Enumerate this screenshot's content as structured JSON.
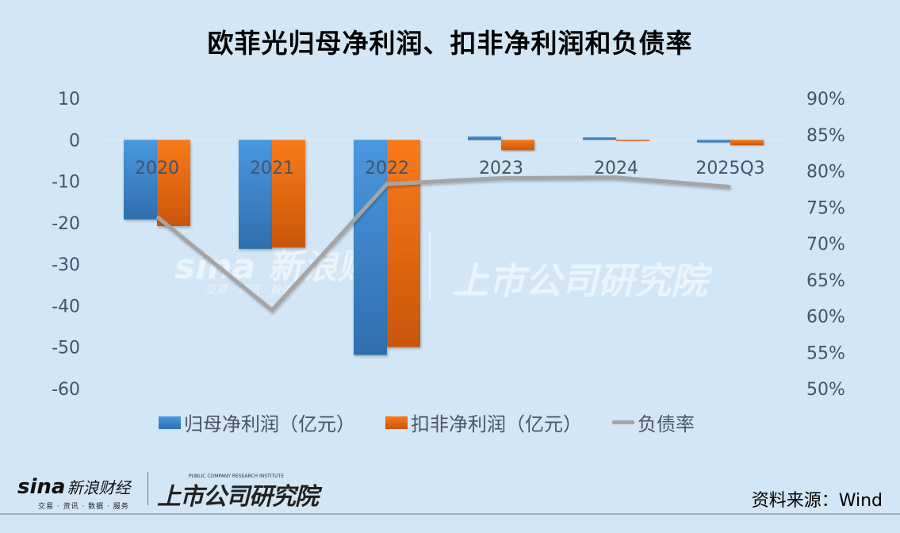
{
  "title": "欧菲光归母净利润、扣非净利润和负债率",
  "legend": {
    "series1": "归母净利润（亿元）",
    "series2": "扣非净利润（亿元）",
    "series3": "负债率"
  },
  "footer": {
    "sina_logo": "sina",
    "sina_cn": "新浪财经",
    "sina_sub": "交易 · 资讯 · 数据 · 服务",
    "institute": "上市公司研究院",
    "institute_sub": "PUBLIC COMPANY RESEARCH INSTITUTE",
    "source": "资料来源：Wind"
  },
  "watermark": {
    "sina": "sina 新浪财经",
    "sina_sub": "交易 · 资讯 · 数据",
    "institute": "上市公司研究院"
  },
  "colors": {
    "background": "#d2e6f5",
    "series1": "#3f88d0",
    "series2": "#ee6e13",
    "series3": "#a5a5a5",
    "axis_text": "#44546a"
  },
  "chart_data": {
    "type": "bar",
    "title": "欧菲光归母净利润、扣非净利润和负债率",
    "categories": [
      "2020",
      "2021",
      "2022",
      "2023",
      "2024",
      "2025Q3"
    ],
    "series": [
      {
        "name": "归母净利润（亿元）",
        "type": "bar",
        "axis": "left",
        "values": [
          -19.2,
          -26.3,
          -51.9,
          0.8,
          0.6,
          -0.6
        ]
      },
      {
        "name": "扣非净利润（亿元）",
        "type": "bar",
        "axis": "left",
        "values": [
          -20.8,
          -26.0,
          -50.0,
          -2.5,
          -0.1,
          -1.3
        ]
      },
      {
        "name": "负债率",
        "type": "line",
        "axis": "right",
        "values": [
          73.7,
          60.8,
          78.2,
          79.0,
          79.1,
          77.8
        ]
      }
    ],
    "left_axis": {
      "ticks": [
        "10",
        "0",
        "-10",
        "-20",
        "-30",
        "-40",
        "-50",
        "-60"
      ],
      "ylim": [
        -60,
        10
      ]
    },
    "right_axis": {
      "ticks": [
        "90%",
        "85%",
        "80%",
        "75%",
        "70%",
        "65%",
        "60%",
        "55%",
        "50%"
      ],
      "ylim": [
        50,
        90
      ]
    },
    "xlabel": "",
    "ylabel": "",
    "grid": false,
    "legend_position": "bottom"
  }
}
